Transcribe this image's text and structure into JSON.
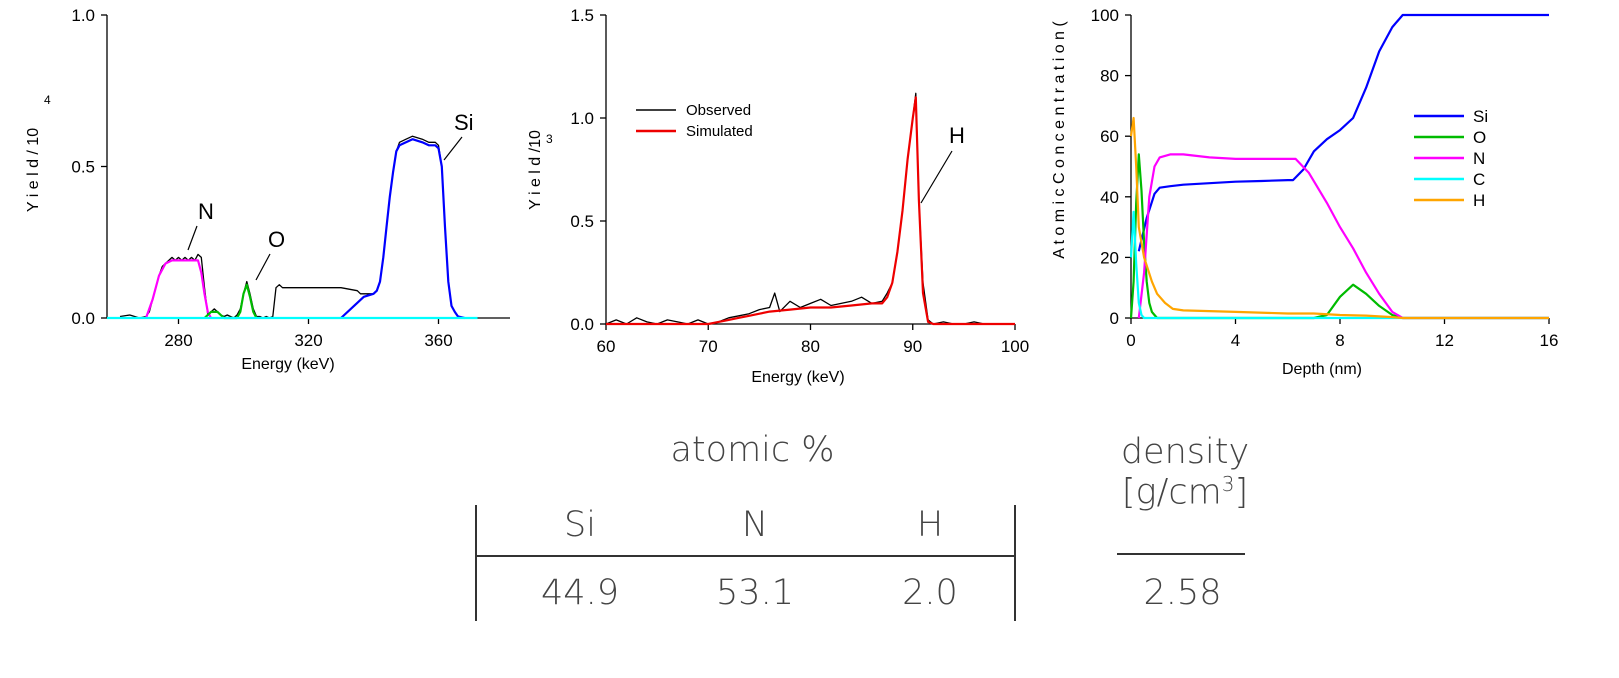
{
  "chart_data": [
    {
      "type": "line",
      "xlabel": "Energy (keV)",
      "ylabel": "Y i e l d  / 10",
      "ylabel_exp": "4",
      "x_ticks": [
        "280",
        "320",
        "360"
      ],
      "y_ticks": [
        "0.0",
        "0.5",
        "1.0"
      ],
      "xlim": [
        258,
        382
      ],
      "ylim": [
        0,
        1.0
      ],
      "annotations": [
        "N",
        "O",
        "Si"
      ],
      "series": [
        {
          "color": "#000000",
          "kind": "observed",
          "x": [
            262,
            265,
            268,
            270,
            271,
            272,
            273,
            274,
            275,
            276,
            277,
            278,
            279,
            280,
            281,
            282,
            283,
            284,
            285,
            286,
            287,
            288,
            289,
            290,
            291,
            292,
            293,
            294,
            295,
            296,
            297,
            298,
            299,
            300,
            301,
            302,
            303,
            304,
            305,
            306,
            307,
            308,
            309,
            310,
            311,
            312,
            313,
            315,
            320,
            325,
            330,
            335,
            336,
            338,
            340,
            341,
            342,
            343,
            344,
            345,
            346,
            347,
            348,
            350,
            352,
            355,
            357,
            359,
            360,
            361,
            362,
            363,
            364,
            365,
            366
          ],
          "y": [
            0.005,
            0.01,
            0.0,
            0.005,
            0.02,
            0.06,
            0.1,
            0.14,
            0.17,
            0.18,
            0.19,
            0.2,
            0.19,
            0.2,
            0.19,
            0.2,
            0.19,
            0.2,
            0.19,
            0.21,
            0.2,
            0.1,
            0.01,
            0.02,
            0.03,
            0.02,
            0.01,
            0.005,
            0.01,
            0.005,
            0.0,
            0.01,
            0.03,
            0.08,
            0.12,
            0.08,
            0.03,
            0.005,
            0.005,
            0.0,
            0.005,
            0.0,
            0.005,
            0.1,
            0.11,
            0.1,
            0.1,
            0.1,
            0.1,
            0.1,
            0.1,
            0.09,
            0.08,
            0.08,
            0.08,
            0.09,
            0.12,
            0.2,
            0.3,
            0.4,
            0.48,
            0.55,
            0.58,
            0.59,
            0.6,
            0.59,
            0.58,
            0.58,
            0.57,
            0.5,
            0.3,
            0.12,
            0.04,
            0.02,
            0.005
          ]
        },
        {
          "color": "#ff00ff",
          "name": "N",
          "x": [
            270,
            272,
            274,
            276,
            278,
            280,
            282,
            284,
            286,
            287,
            288,
            289,
            290
          ],
          "y": [
            0.0,
            0.06,
            0.14,
            0.18,
            0.19,
            0.19,
            0.19,
            0.19,
            0.19,
            0.15,
            0.08,
            0.02,
            0.0
          ]
        },
        {
          "color": "#00bb00",
          "name": "O",
          "x": [
            288,
            290,
            292,
            294,
            296,
            298,
            299,
            300,
            301,
            302,
            303,
            304
          ],
          "y": [
            0.0,
            0.02,
            0.02,
            0.0,
            0.0,
            0.0,
            0.02,
            0.08,
            0.11,
            0.07,
            0.02,
            0.0
          ]
        },
        {
          "color": "#0000ff",
          "name": "Si",
          "x": [
            330,
            334,
            337,
            340,
            341,
            342,
            343,
            344,
            345,
            346,
            347,
            348,
            350,
            352,
            355,
            357,
            359,
            360,
            361,
            362,
            363,
            364,
            365,
            366,
            368
          ],
          "y": [
            0.0,
            0.04,
            0.07,
            0.08,
            0.09,
            0.12,
            0.2,
            0.3,
            0.4,
            0.48,
            0.55,
            0.57,
            0.58,
            0.59,
            0.58,
            0.57,
            0.57,
            0.56,
            0.5,
            0.3,
            0.12,
            0.04,
            0.02,
            0.005,
            0.0
          ]
        },
        {
          "color": "#00ffff",
          "name": "C",
          "x": [
            258,
            372
          ],
          "y": [
            0.0,
            0.0
          ]
        }
      ]
    },
    {
      "type": "line",
      "xlabel": "Energy (keV)",
      "ylabel": "Y i e l d  /10",
      "ylabel_exp": "3",
      "x_ticks": [
        "60",
        "70",
        "80",
        "90",
        "100"
      ],
      "y_ticks": [
        "0.0",
        "0.5",
        "1.0",
        "1.5"
      ],
      "xlim": [
        60,
        100
      ],
      "ylim": [
        0,
        1.5
      ],
      "legend_position": "upper-left",
      "annotations": [
        "H"
      ],
      "series": [
        {
          "name": "Observed",
          "color": "#000000",
          "x": [
            60,
            61,
            62,
            63,
            64,
            65,
            66,
            67,
            68,
            69,
            70,
            71,
            72,
            73,
            74,
            75,
            76,
            76.5,
            77,
            78,
            79,
            80,
            81,
            82,
            83,
            84,
            85,
            86,
            87,
            87.5,
            88,
            88.5,
            89,
            89.5,
            90,
            90.3,
            90.6,
            91,
            91.5,
            92,
            93,
            94,
            95,
            96,
            97
          ],
          "y": [
            0.0,
            0.02,
            0.0,
            0.03,
            0.01,
            0.0,
            0.02,
            0.01,
            0.0,
            0.02,
            0.0,
            0.01,
            0.03,
            0.04,
            0.05,
            0.07,
            0.08,
            0.15,
            0.06,
            0.11,
            0.08,
            0.1,
            0.12,
            0.09,
            0.1,
            0.11,
            0.13,
            0.1,
            0.11,
            0.15,
            0.2,
            0.35,
            0.55,
            0.8,
            1.0,
            1.12,
            0.6,
            0.2,
            0.02,
            0.0,
            0.01,
            0.0,
            0.0,
            0.01,
            0.0
          ]
        },
        {
          "name": "Simulated",
          "color": "#ee0000",
          "x": [
            60,
            70,
            71,
            72,
            73,
            74,
            75,
            76,
            78,
            80,
            82,
            84,
            86,
            87,
            87.5,
            88,
            88.5,
            89,
            89.5,
            90,
            90.3,
            90.6,
            91,
            91.5,
            92,
            100
          ],
          "y": [
            0.0,
            0.0,
            0.01,
            0.02,
            0.03,
            0.04,
            0.05,
            0.06,
            0.07,
            0.08,
            0.08,
            0.09,
            0.1,
            0.1,
            0.13,
            0.2,
            0.35,
            0.55,
            0.8,
            1.0,
            1.1,
            0.6,
            0.15,
            0.01,
            0.0,
            0.0
          ]
        }
      ]
    },
    {
      "type": "line",
      "xlabel": "Depth (nm)",
      "ylabel": "A t o m i c  C o n c e n t r a t i o n  (",
      "x_ticks": [
        "0",
        "4",
        "8",
        "12",
        "16"
      ],
      "y_ticks": [
        "0",
        "20",
        "40",
        "60",
        "80",
        "100"
      ],
      "xlim": [
        0,
        16
      ],
      "ylim": [
        0,
        100
      ],
      "legend_position": "right",
      "series": [
        {
          "name": "Si",
          "color": "#0000ff",
          "x": [
            0.3,
            0.6,
            0.9,
            1.1,
            1.5,
            2.0,
            3.0,
            4.0,
            5.0,
            6.0,
            6.2,
            6.6,
            7.0,
            7.5,
            8.0,
            8.5,
            9.0,
            9.5,
            10.0,
            10.4,
            11,
            12,
            16
          ],
          "y": [
            22,
            33,
            41,
            43,
            43.5,
            44,
            44.5,
            45,
            45.2,
            45.5,
            45.5,
            49,
            55,
            59,
            62,
            66,
            76,
            88,
            96,
            100,
            100,
            100,
            100
          ]
        },
        {
          "name": "O",
          "color": "#00bb00",
          "x": [
            0.0,
            0.1,
            0.2,
            0.3,
            0.4,
            0.5,
            0.6,
            0.7,
            0.8,
            0.9,
            1.0,
            1.5,
            7.0,
            7.5,
            8.0,
            8.5,
            9.0,
            9.5,
            10.0,
            10.4,
            16
          ],
          "y": [
            0,
            12,
            38,
            54,
            42,
            25,
            12,
            5,
            2,
            1,
            0,
            0,
            0,
            1,
            7,
            11,
            8,
            4,
            1,
            0,
            0
          ]
        },
        {
          "name": "N",
          "color": "#ff00ff",
          "x": [
            0.3,
            0.5,
            0.7,
            0.9,
            1.1,
            1.5,
            2.0,
            3.0,
            4.0,
            5.0,
            6.0,
            6.3,
            6.8,
            7.5,
            8.0,
            8.5,
            9.0,
            9.5,
            10.0,
            10.4,
            16
          ],
          "y": [
            0,
            15,
            40,
            50,
            53,
            54,
            54,
            53,
            52.5,
            52.5,
            52.5,
            52.5,
            48,
            38,
            30,
            23,
            15,
            8,
            2,
            0,
            0
          ]
        },
        {
          "name": "C",
          "color": "#00ffff",
          "x": [
            0.0,
            0.1,
            0.2,
            0.3,
            0.4,
            0.5,
            16
          ],
          "y": [
            20,
            35,
            18,
            5,
            1,
            0,
            0
          ]
        },
        {
          "name": "H",
          "color": "#ffa500",
          "x": [
            0.0,
            0.1,
            0.2,
            0.3,
            0.5,
            0.8,
            1.0,
            1.3,
            1.6,
            2.0,
            4.0,
            6.0,
            7.0,
            8.0,
            9.0,
            10.0,
            10.4,
            16
          ],
          "y": [
            60,
            66,
            50,
            30,
            20,
            12,
            8,
            5,
            3,
            2.5,
            2,
            1.5,
            1.5,
            1,
            0.8,
            0.3,
            0,
            0
          ]
        }
      ]
    }
  ],
  "table": {
    "header": "atomic %",
    "columns": [
      "Si",
      "N",
      "H"
    ],
    "values": [
      "44.9",
      "53.1",
      "2.0"
    ],
    "density_header_line1": "density",
    "density_header_line2": "[g/cm",
    "density_header_sup": "3",
    "density_header_close": "]",
    "density_value": "2.58"
  }
}
